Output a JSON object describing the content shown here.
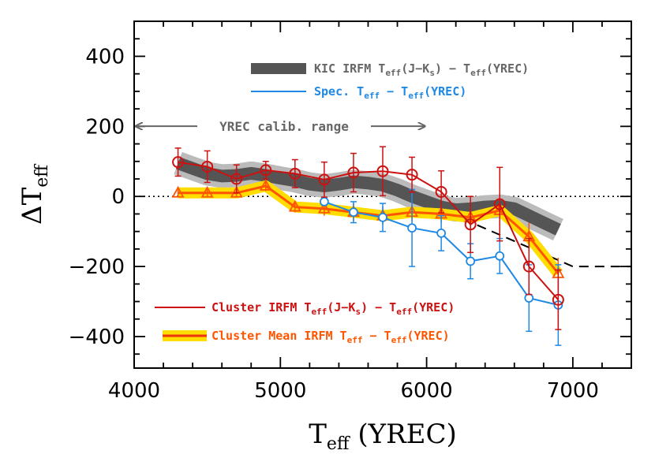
{
  "chart_data": {
    "type": "line",
    "xlabel": {
      "main": "T",
      "sub": "eff",
      "rest": " (YREC)"
    },
    "ylabel": {
      "main": "ΔT",
      "sub": "eff"
    },
    "xlim": [
      4000,
      7400
    ],
    "ylim": [
      -490,
      500
    ],
    "xticks": [
      4000,
      5000,
      6000,
      7000
    ],
    "xtick_labels": [
      "4000",
      "5000",
      "6000",
      "7000"
    ],
    "yticks": [
      -400,
      -200,
      0,
      200,
      400
    ],
    "ytick_labels": [
      "−400",
      "−200",
      "0",
      "200",
      "400"
    ],
    "zero_line": 0,
    "annotation": {
      "text": "YREC calib. range",
      "x_from": 4000,
      "x_to": 6000,
      "y": 205
    },
    "series": [
      {
        "name": "KIC IRFM Teff(J-Ks) - Teff(YREC)",
        "legend": {
          "prefix": "KIC IRFM T",
          "parts": [
            [
              "eff",
              "(J−K"
            ],
            [
              "s",
              ") − T"
            ],
            [
              "eff",
              "(YREC)"
            ]
          ]
        },
        "color": "#555555",
        "band_color": "#bbbbbb",
        "x": [
          4300,
          4400,
          4500,
          4600,
          4700,
          4800,
          4900,
          5000,
          5100,
          5200,
          5300,
          5400,
          5500,
          5600,
          5700,
          5800,
          5900,
          6000,
          6100,
          6200,
          6300,
          6400,
          6500,
          6600,
          6700,
          6800,
          6900
        ],
        "y": [
          95,
          80,
          65,
          58,
          60,
          66,
          60,
          52,
          45,
          35,
          30,
          35,
          42,
          38,
          32,
          18,
          0,
          -15,
          -30,
          -38,
          -35,
          -30,
          -28,
          -35,
          -55,
          -75,
          -95
        ]
      },
      {
        "name": "Spec. Teff - Teff(YREC)",
        "legend": {
          "prefix": "Spec. T",
          "parts": [
            [
              "eff",
              " − T"
            ],
            [
              "eff",
              "(YREC)"
            ]
          ]
        },
        "color": "#1e88e5",
        "x": [
          5300,
          5500,
          5700,
          5900,
          6100,
          6300,
          6500,
          6700,
          6900
        ],
        "y": [
          -15,
          -45,
          -60,
          -90,
          -105,
          -185,
          -170,
          -290,
          -310
        ],
        "err": [
          10,
          30,
          40,
          110,
          50,
          50,
          50,
          95,
          115
        ]
      },
      {
        "name": "Cluster IRFM Teff(J-Ks) - Teff(YREC)",
        "legend": {
          "prefix": "Cluster IRFM T",
          "parts": [
            [
              "eff",
              "(J−K"
            ],
            [
              "s",
              ") − T"
            ],
            [
              "eff",
              "(YREC)"
            ]
          ]
        },
        "color": "#cc1111",
        "x": [
          4300,
          4500,
          4700,
          4900,
          5100,
          5300,
          5500,
          5700,
          5900,
          6100,
          6300,
          6500,
          6700,
          6900
        ],
        "y": [
          98,
          85,
          50,
          75,
          65,
          48,
          68,
          72,
          62,
          13,
          -80,
          -22,
          -200,
          -295
        ],
        "err": [
          40,
          45,
          40,
          25,
          40,
          50,
          55,
          70,
          50,
          60,
          80,
          105,
          80,
          85
        ]
      },
      {
        "name": "Cluster Mean IRFM Teff - Teff(YREC)",
        "legend": {
          "prefix": "Cluster Mean IRFM T",
          "parts": [
            [
              "eff",
              " − T"
            ],
            [
              "eff",
              "(YREC)"
            ]
          ]
        },
        "color": "#ff5500",
        "band_color": "#ffdd00",
        "x": [
          4300,
          4500,
          4700,
          4900,
          5100,
          5300,
          5500,
          5700,
          5900,
          6100,
          6300,
          6500,
          6700,
          6900
        ],
        "y": [
          10,
          10,
          10,
          30,
          -30,
          -35,
          -45,
          -55,
          -45,
          -50,
          -60,
          -40,
          -115,
          -220
        ],
        "err": [
          10,
          10,
          12,
          15,
          15,
          20,
          25,
          25,
          25,
          25,
          30,
          50,
          40,
          45
        ]
      }
    ],
    "dashed_line": {
      "x": [
        5950,
        7000,
        7400
      ],
      "y": [
        -10,
        -200,
        -200
      ]
    }
  }
}
